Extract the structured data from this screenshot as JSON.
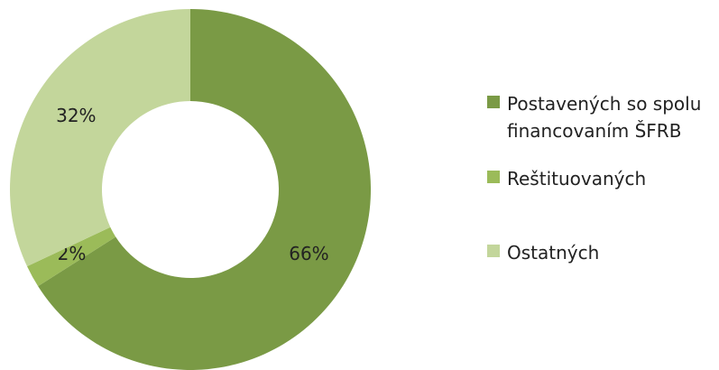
{
  "chart_data": {
    "type": "donut",
    "categories": [
      "Postavených so spolu financovaním ŠFRB",
      "Reštituovaných",
      "Ostatných"
    ],
    "values": [
      66,
      2,
      32
    ],
    "value_labels": [
      "66%",
      "2%",
      "32%"
    ],
    "colors": [
      "#7a9a45",
      "#9bbb59",
      "#c3d69b"
    ]
  }
}
